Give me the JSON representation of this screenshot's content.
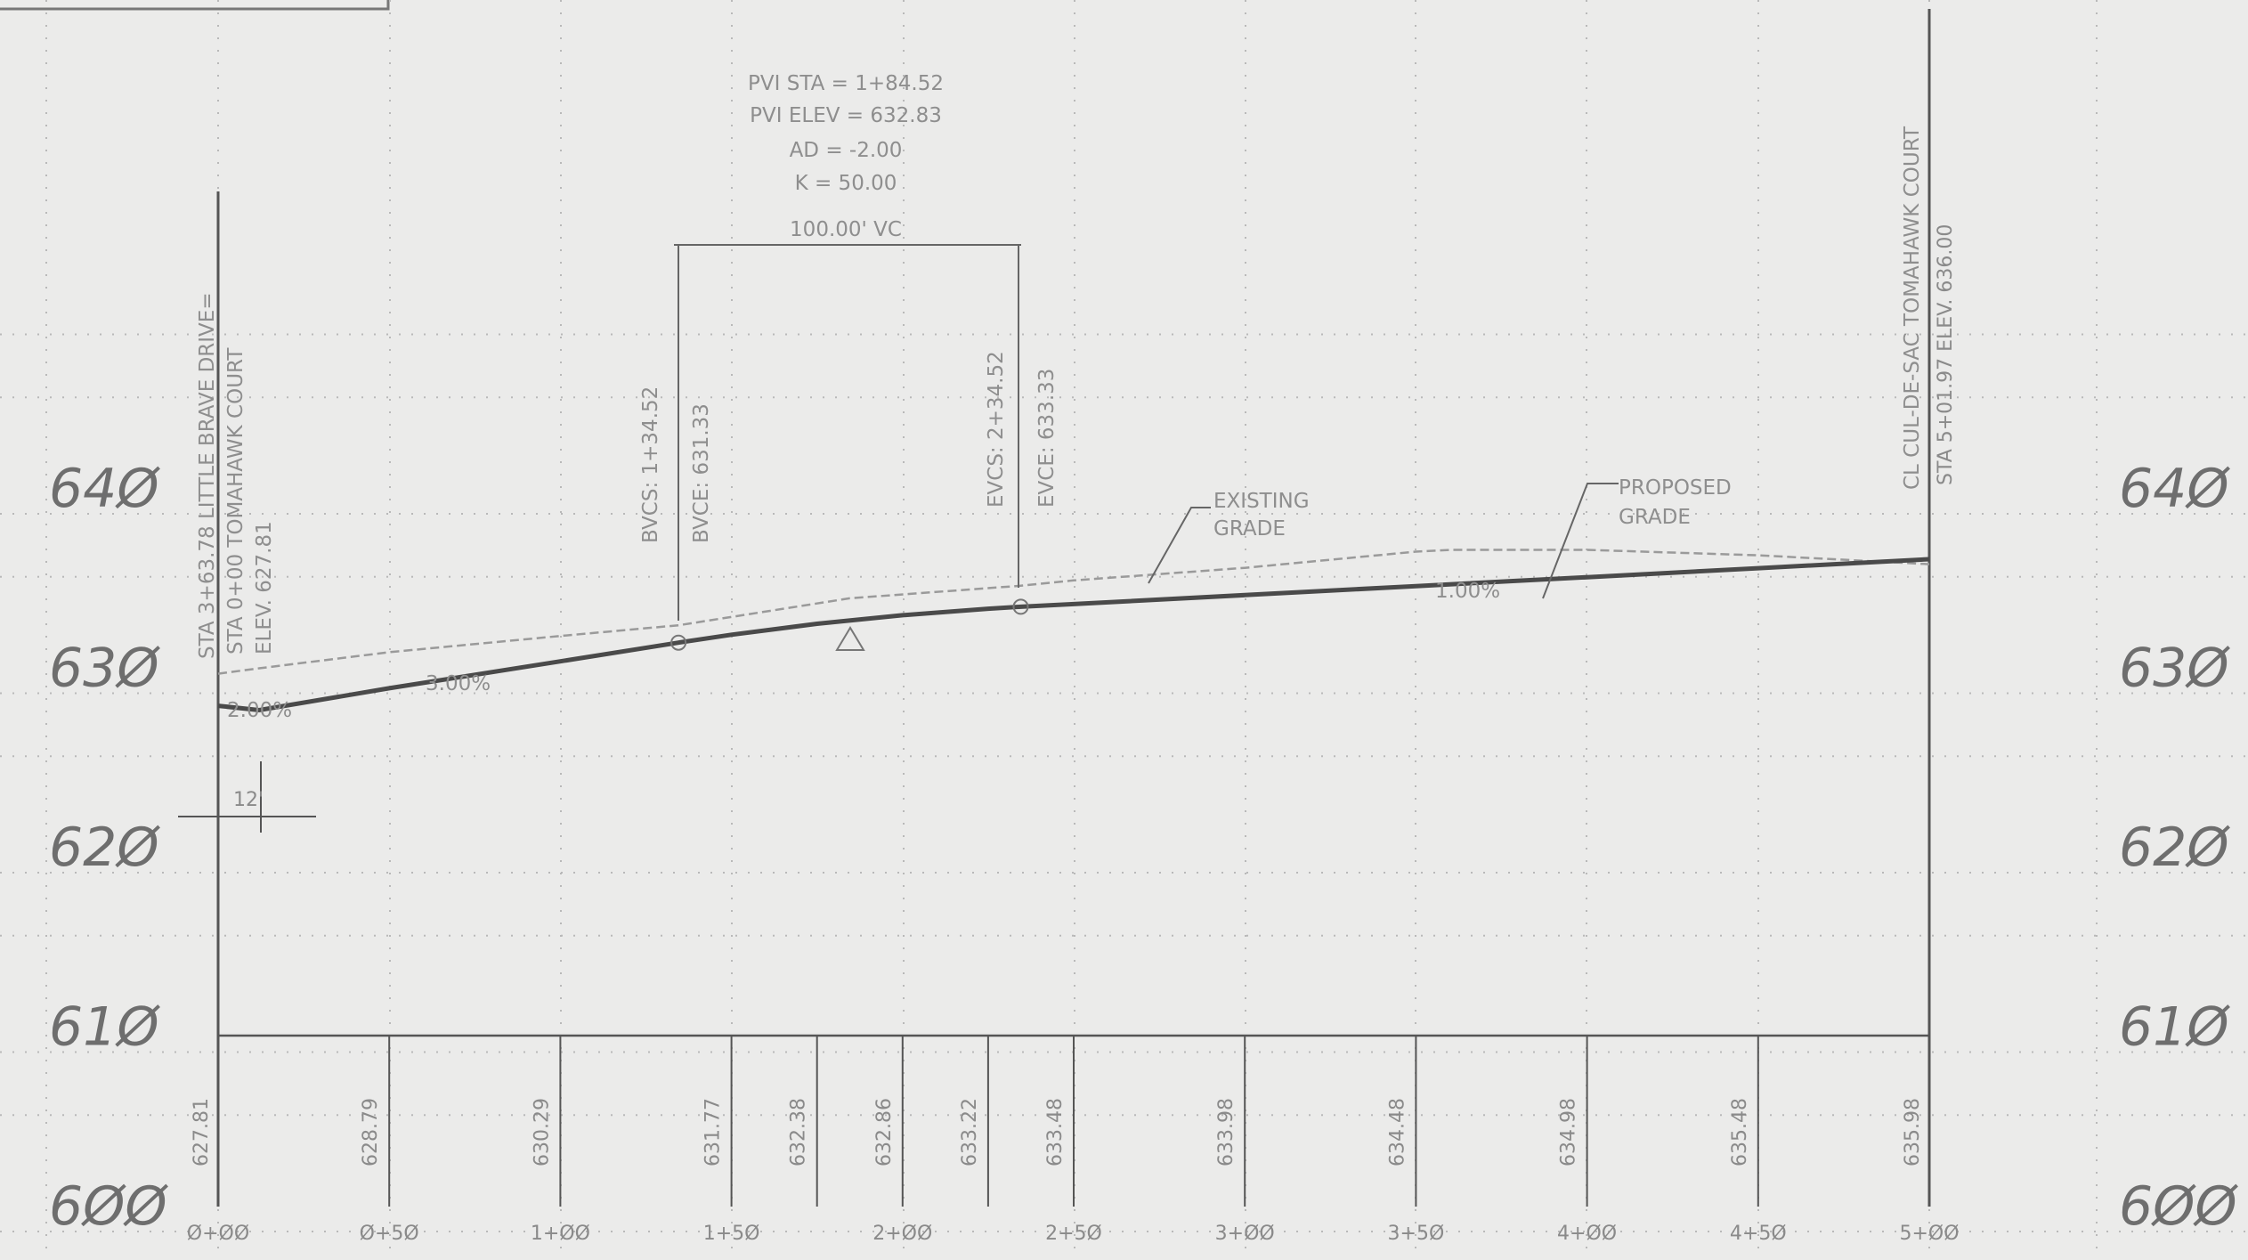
{
  "chart_data": {
    "type": "line",
    "title": "",
    "y_ticks": [
      "600",
      "610",
      "620",
      "630",
      "640"
    ],
    "x_ticks": [
      "0+00",
      "0+50",
      "1+00",
      "1+50",
      "2+00",
      "2+50",
      "3+00",
      "3+50",
      "4+00",
      "4+50",
      "5+00"
    ],
    "y_range": [
      600,
      650
    ],
    "x_range": [
      0,
      500
    ],
    "series": [
      {
        "name": "EXISTING GRADE",
        "x": [
          0,
          12,
          50,
          100,
          134.52,
          184.52,
          234.52,
          250,
          300,
          350,
          360,
          400,
          450,
          500
        ],
        "y": [
          629.6,
          629.9,
          630.8,
          631.7,
          632.3,
          633.8,
          634.5,
          634.8,
          635.5,
          636.4,
          636.5,
          636.5,
          636.2,
          635.7
        ]
      },
      {
        "name": "PROPOSED GRADE",
        "x": [
          0,
          12,
          50,
          100,
          134.52,
          150,
          175,
          200,
          225,
          234.52,
          250,
          300,
          350,
          400,
          450,
          500
        ],
        "y": [
          627.81,
          627.57,
          628.79,
          630.29,
          631.33,
          631.77,
          632.38,
          632.86,
          633.22,
          633.33,
          633.48,
          633.98,
          634.48,
          634.98,
          635.48,
          635.98
        ]
      }
    ]
  },
  "labels": {
    "pvi_sta": "PVI STA = 1+84.52",
    "pvi_elev": "PVI ELEV = 632.83",
    "ad": "AD = -2.00",
    "k": "K = 50.00",
    "vc": "100.00' VC",
    "bvcs": "BVCS: 1+34.52",
    "bvce": "BVCE: 631.33",
    "evcs": "EVCS: 2+34.52",
    "evce": "EVCE: 633.33",
    "existing_1": "EXISTING",
    "existing_2": "GRADE",
    "proposed_1": "PROPOSED",
    "proposed_2": "GRADE",
    "grade_200_neg": "2.00%",
    "grade_300": "3.00%",
    "grade_100": "1.00%",
    "dim_12": "12'",
    "left_sta_1": "STA 3+63.78 LITTLE BRAVE DRIVE=",
    "left_sta_2": "STA 0+00 TOMAHAWK COURT",
    "left_elev": "ELEV. 627.81",
    "right_sta_1": "CL CUL-DE-SAC TOMAHAWK COURT",
    "right_sta_2": "STA 5+01.97 ELEV. 636.00"
  },
  "elevation_table": [
    {
      "station": 0,
      "value": "627.81"
    },
    {
      "station": 50,
      "value": "628.79"
    },
    {
      "station": 100,
      "value": "630.29"
    },
    {
      "station": 150,
      "value": "631.77"
    },
    {
      "station": 175,
      "value": "632.38"
    },
    {
      "station": 200,
      "value": "632.86"
    },
    {
      "station": 225,
      "value": "633.22"
    },
    {
      "station": 250,
      "value": "633.48"
    },
    {
      "station": 300,
      "value": "633.98"
    },
    {
      "station": 350,
      "value": "634.48"
    },
    {
      "station": 400,
      "value": "634.98"
    },
    {
      "station": 450,
      "value": "635.48"
    },
    {
      "station": 500,
      "value": "635.98"
    }
  ],
  "colors": {
    "background": "#ebebea",
    "grid": "#b9b9b9",
    "proposed": "#4a4a4a",
    "existing": "#9a9a9a",
    "text": "#7a7a7a"
  }
}
